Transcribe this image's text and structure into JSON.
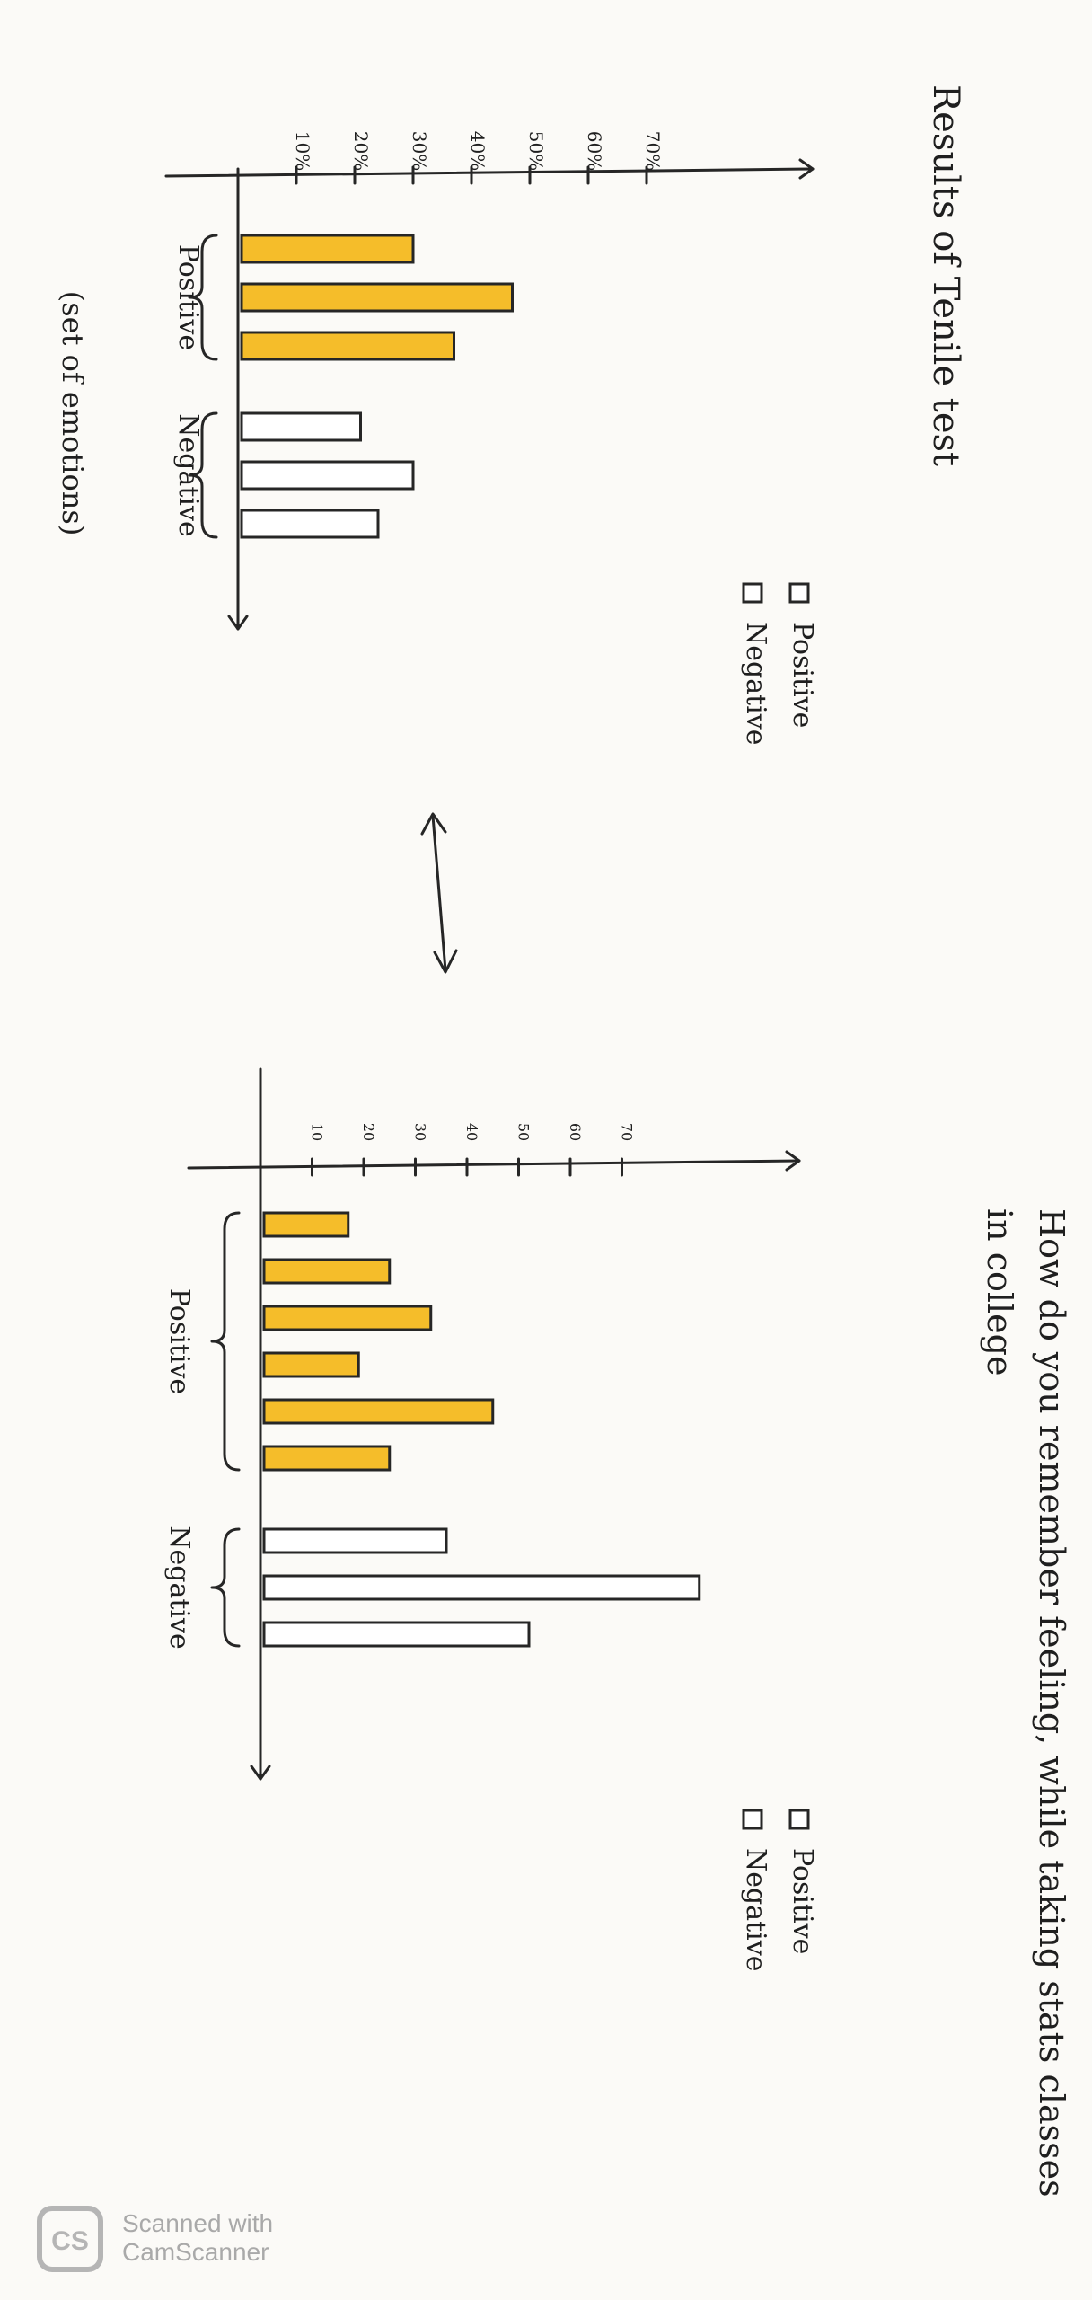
{
  "chart_data": [
    {
      "type": "bar",
      "title": "Results of Tenile test",
      "ticks": [
        "10%",
        "20%",
        "30%",
        "40%",
        "50%",
        "60%",
        "70%"
      ],
      "xlim": [
        0,
        75
      ],
      "groups": [
        {
          "label": "Positive",
          "series": "Positive",
          "values": [
            30,
            47,
            37
          ]
        },
        {
          "label": "Negative",
          "series": "Negative",
          "values": [
            21,
            30,
            24
          ]
        }
      ],
      "group_caption": "(set of emotions)",
      "legend": [
        {
          "name": "Positive"
        },
        {
          "name": "Negative"
        }
      ]
    },
    {
      "type": "bar",
      "title": "How do you remember feeling, while taking stats classes in college",
      "ticks": [
        "10",
        "20",
        "30",
        "40",
        "50",
        "60",
        "70"
      ],
      "xlim": [
        0,
        75
      ],
      "groups": [
        {
          "label": "Positive",
          "series": "Positive",
          "values": [
            17,
            25,
            33,
            19,
            45,
            25
          ]
        },
        {
          "label": "Negative",
          "series": "Negative",
          "values": [
            36,
            85,
            52
          ]
        }
      ],
      "legend": [
        {
          "name": "Positive"
        },
        {
          "name": "Negative"
        }
      ]
    }
  ],
  "watermark": {
    "line1": "Scanned with",
    "line2": "CamScanner",
    "logo": "CS"
  }
}
